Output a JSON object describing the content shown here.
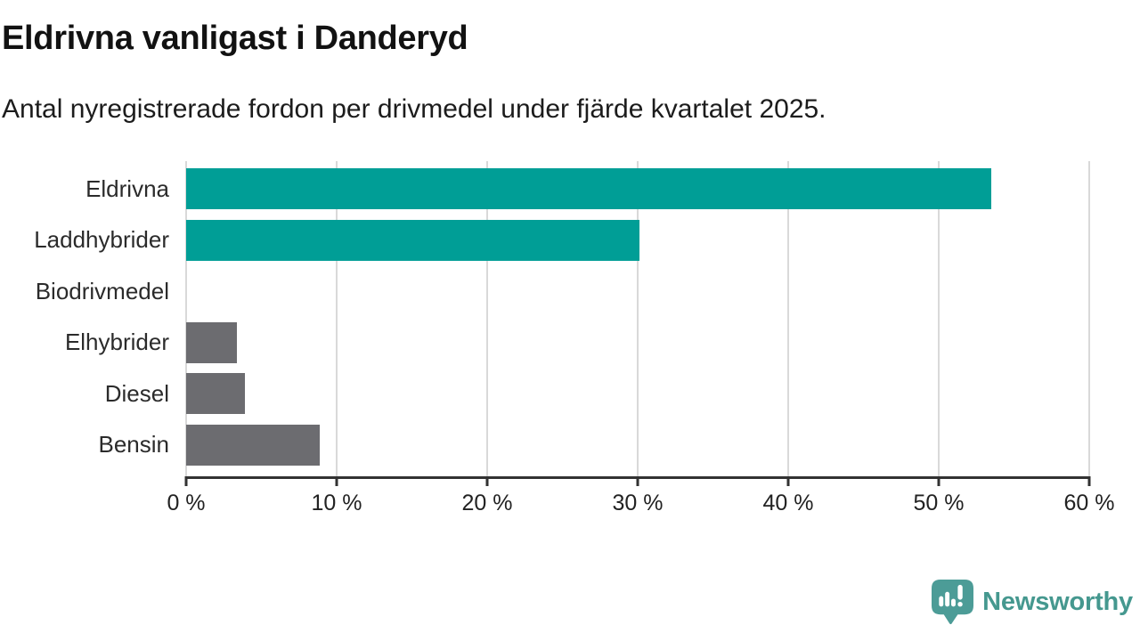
{
  "header": {
    "title": "Eldrivna vanligast i Danderyd",
    "subtitle": "Antal nyregistrerade fordon per drivmedel under fjärde kvartalet 2025."
  },
  "chart_data": {
    "type": "bar",
    "orientation": "horizontal",
    "title": "Eldrivna vanligast i Danderyd",
    "subtitle": "Antal nyregistrerade fordon per drivmedel under fjärde kvartalet 2025.",
    "categories": [
      "Eldrivna",
      "Laddhybrider",
      "Biodrivmedel",
      "Elhybrider",
      "Diesel",
      "Bensin"
    ],
    "values": [
      53.5,
      30.1,
      0,
      3.4,
      3.9,
      8.9
    ],
    "unit": "%",
    "xlim": [
      0,
      60
    ],
    "x_ticks": [
      0,
      10,
      20,
      30,
      40,
      50,
      60
    ],
    "x_tick_labels": [
      "0 %",
      "10 %",
      "20 %",
      "30 %",
      "40 %",
      "50 %",
      "60 %"
    ],
    "bar_colors": [
      "#009e96",
      "#009e96",
      "#6c6c70",
      "#6c6c70",
      "#6c6c70",
      "#6c6c70"
    ],
    "grid": "vertical",
    "legend": "none"
  },
  "colors": {
    "accent_teal": "#009e96",
    "bar_gray": "#6c6c70",
    "gridline": "#d9d9d9",
    "axis": "#323232",
    "logo_teal": "#4c9c97",
    "brand_text_teal": "#45988f"
  },
  "footer": {
    "brand": "Newsworthy"
  },
  "icons": {
    "logo": "newsworthy-bubble-chart-icon"
  }
}
